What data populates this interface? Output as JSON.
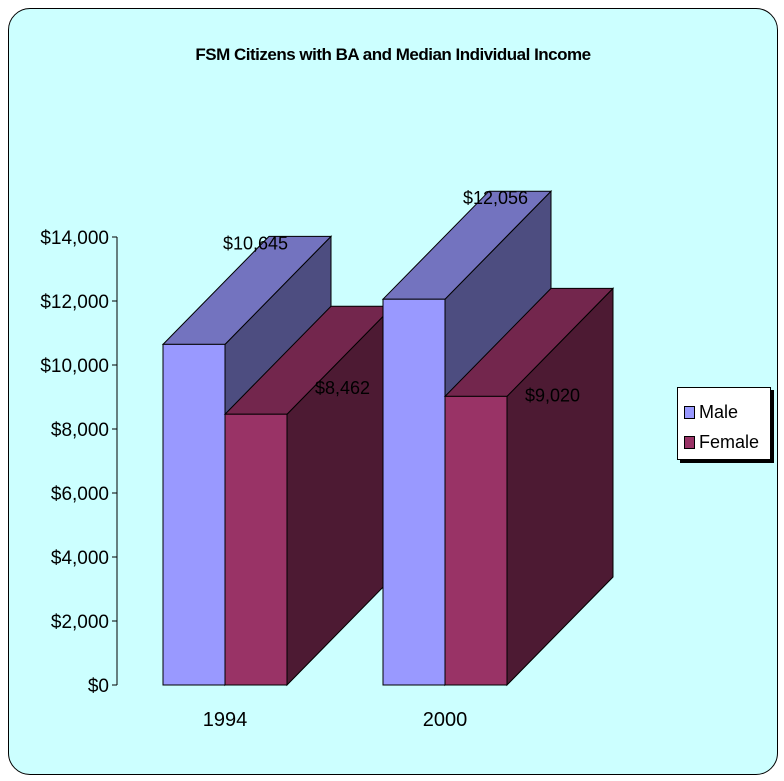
{
  "chart_data": {
    "type": "bar",
    "title": "FSM Citizens with BA and Median Individual Income",
    "categories": [
      "1994",
      "2000"
    ],
    "series": [
      {
        "name": "Male",
        "values": [
          10645,
          12056
        ],
        "labels": [
          "$10,645",
          "$12,056"
        ],
        "color": "#9999ff"
      },
      {
        "name": "Female",
        "values": [
          8462,
          9020
        ],
        "labels": [
          "$8,462",
          "$9,020"
        ],
        "color": "#993366"
      }
    ],
    "ylim": [
      0,
      14000
    ],
    "yticks": [
      "$0",
      "$2,000",
      "$4,000",
      "$6,000",
      "$8,000",
      "$10,000",
      "$12,000",
      "$14,000"
    ],
    "ytick_values": [
      0,
      2000,
      4000,
      6000,
      8000,
      10000,
      12000,
      14000
    ],
    "grid": false,
    "legend": "right",
    "background_color": "#ccffff"
  }
}
